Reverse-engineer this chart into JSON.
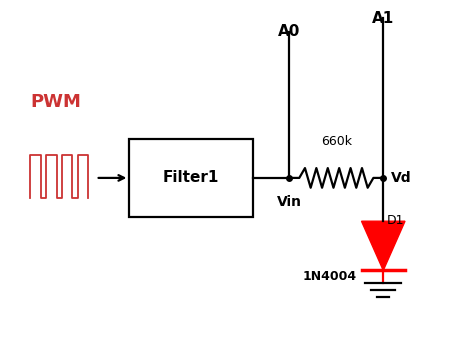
{
  "background_color": "#ffffff",
  "line_color": "#000000",
  "red_color": "#ff0000",
  "pwm_color": "#cc3333",
  "pwm_label": "PWM",
  "a0_label": "A0",
  "a1_label": "A1",
  "vin_label": "Vin",
  "vd_label": "Vd",
  "d1_label": "D1",
  "resistor_label": "660k",
  "diode_label": "1N4004",
  "filter_label": "Filter1",
  "lw": 1.6
}
